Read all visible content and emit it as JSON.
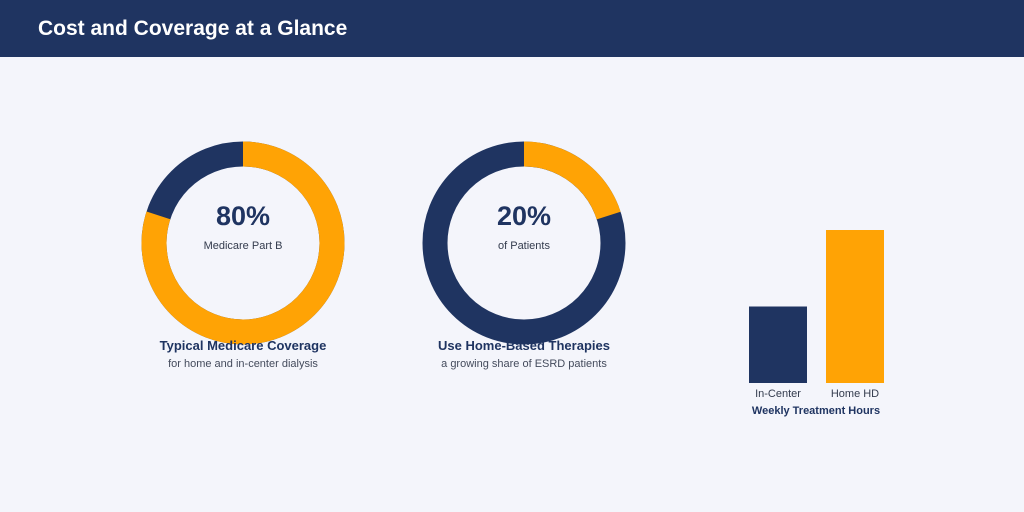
{
  "header": {
    "title": "Cost and Coverage at a Glance"
  },
  "colors": {
    "header_bg": "#1f3461",
    "navy": "#1f3461",
    "orange": "#ffa305",
    "page_bg": "#f4f5fb"
  },
  "chart_data": [
    {
      "type": "pie",
      "style": "donut",
      "values": [
        80,
        20
      ],
      "highlight_value": 80,
      "center_value": "80%",
      "center_label": "Medicare Part B",
      "caption": "Typical Medicare Coverage",
      "caption_sub": "for home and in-center dialysis",
      "highlight_color": "#ffa305",
      "remainder_color": "#1f3461"
    },
    {
      "type": "pie",
      "style": "donut",
      "values": [
        20,
        80
      ],
      "highlight_value": 20,
      "center_value": "20%",
      "center_label": "of Patients",
      "caption": "Use Home-Based Therapies",
      "caption_sub": "a growing share of ESRD patients",
      "highlight_color": "#ffa305",
      "remainder_color": "#1f3461"
    },
    {
      "type": "bar",
      "categories": [
        "In-Center",
        "Home HD"
      ],
      "values": [
        12,
        24
      ],
      "colors": [
        "#1f3461",
        "#ffa305"
      ],
      "title": "Weekly Treatment Hours",
      "ylim": [
        0,
        24
      ],
      "grid": false
    }
  ]
}
